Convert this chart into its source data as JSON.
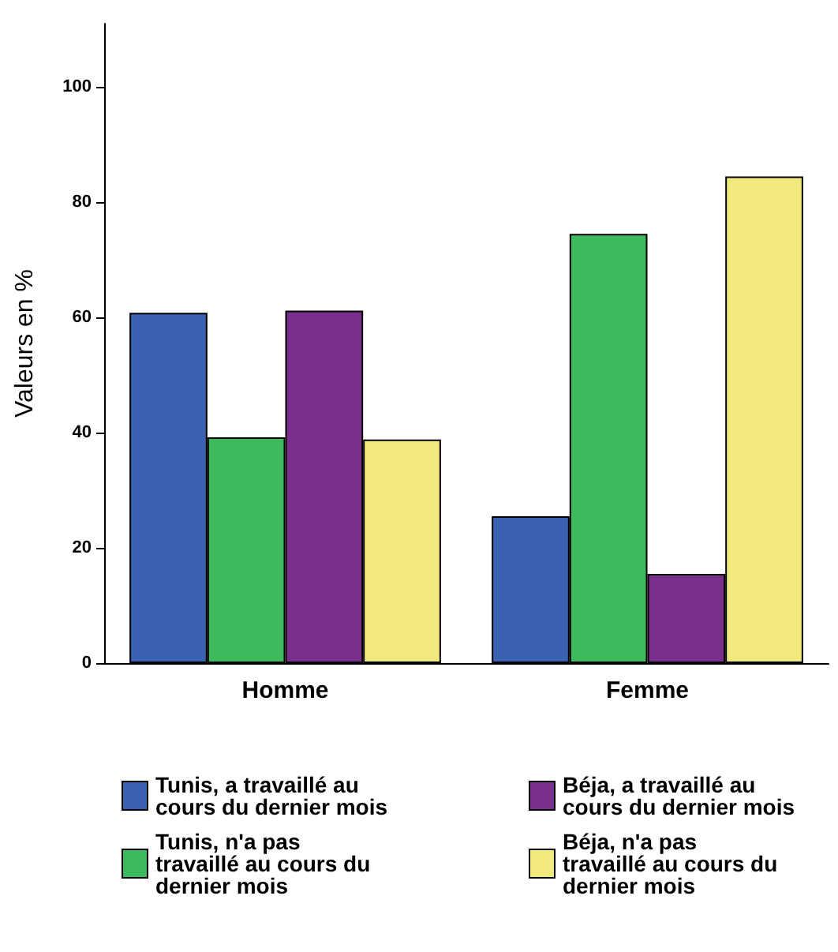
{
  "chart_data": {
    "type": "bar",
    "ylabel": "Valeurs en %",
    "categories": [
      "Homme",
      "Femme"
    ],
    "series": [
      {
        "name": "Tunis, a travaillé au cours du dernier mois",
        "color": "#3a62b0",
        "values": [
          60.8,
          25.5
        ]
      },
      {
        "name": "Tunis, n'a pas travaillé au cours du dernier mois",
        "color": "#3dba5e",
        "values": [
          39.2,
          74.5
        ]
      },
      {
        "name": "Béja, a travaillé au cours du dernier mois",
        "color": "#7b2f8c",
        "values": [
          61.2,
          15.5
        ]
      },
      {
        "name": "Béja, n'a pas travaillé au cours du dernier mois",
        "color": "#f0ea7e",
        "values": [
          38.8,
          84.5
        ]
      }
    ],
    "ylim": [
      0,
      111
    ],
    "yticks": [
      0,
      20,
      40,
      60,
      80,
      100
    ],
    "grid": false,
    "legend": "bottom"
  }
}
